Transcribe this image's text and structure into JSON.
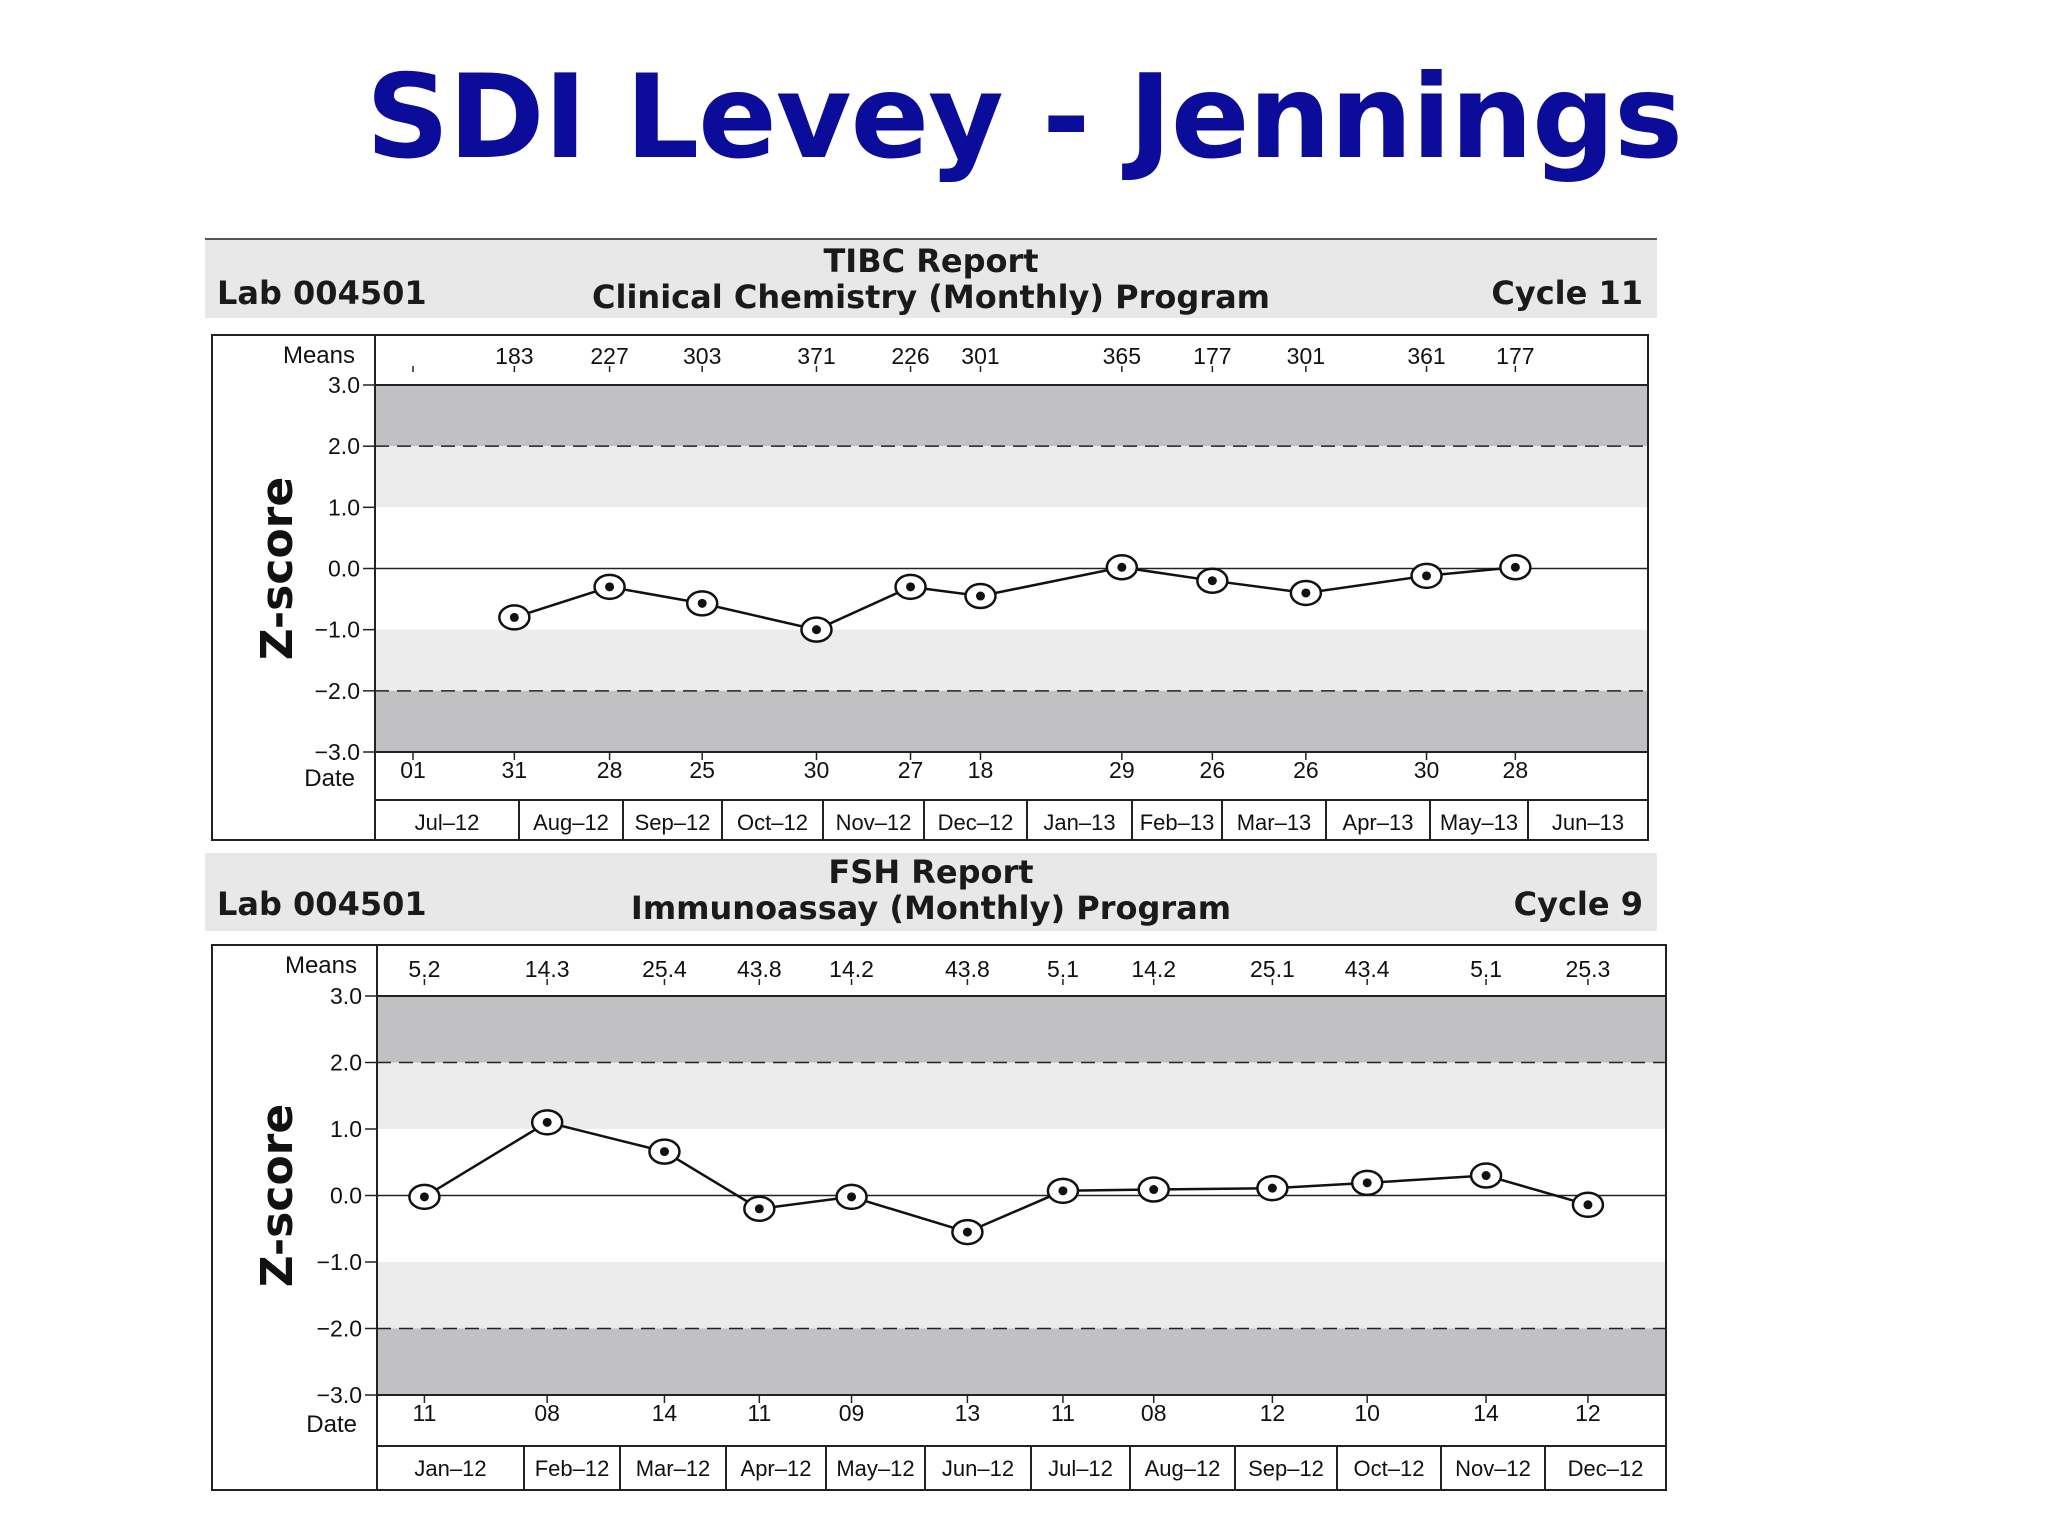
{
  "page": {
    "title": "SDI Levey - Jennings"
  },
  "charts": {
    "tibc": {
      "lab": "Lab 004501",
      "report": "TIBC Report",
      "program": "Clinical Chemistry (Monthly) Program",
      "cycle": "Cycle 11",
      "means_label": "Means",
      "date_label": "Date",
      "ylabel": "Z-score",
      "yticks": [
        "3.0",
        "2.0",
        "1.0",
        "0.0",
        "−1.0",
        "−2.0",
        "−3.0"
      ]
    },
    "fsh": {
      "lab": "Lab 004501",
      "report": "FSH Report",
      "program": "Immunoassay (Monthly) Program",
      "cycle": "Cycle 9",
      "means_label": "Means",
      "date_label": "Date",
      "ylabel": "Z-score",
      "yticks": [
        "3.0",
        "2.0",
        "1.0",
        "0.0",
        "−1.0",
        "−2.0",
        "−3.0"
      ]
    }
  },
  "chart_data": [
    {
      "type": "line",
      "title": "TIBC Report",
      "subtitle": "Clinical Chemistry (Monthly) Program",
      "ylabel": "Z-score",
      "ylim": [
        -3,
        3
      ],
      "grid": false,
      "limit_lines": [
        2,
        -2
      ],
      "months": [
        "Jul–12",
        "Aug–12",
        "Sep–12",
        "Oct–12",
        "Nov–12",
        "Dec–12",
        "Jan–13",
        "Feb–13",
        "Mar–13",
        "Apr–13",
        "May–13",
        "Jun–13"
      ],
      "start_day": "01",
      "means": [
        "183",
        "227",
        "303",
        "371",
        "226",
        "301",
        "365",
        "177",
        "301",
        "361",
        "177"
      ],
      "dates": [
        "31",
        "28",
        "25",
        "30",
        "27",
        "18",
        "29",
        "26",
        "26",
        "30",
        "28"
      ],
      "x": [
        "2012-07-31",
        "2012-08-28",
        "2012-09-25",
        "2012-10-30",
        "2012-11-27",
        "2012-12-18",
        "2013-01-29",
        "2013-02-26",
        "2013-03-26",
        "2013-04-30",
        "2013-05-28"
      ],
      "values": [
        -0.8,
        -0.3,
        -0.57,
        -1.0,
        -0.3,
        -0.45,
        0.02,
        -0.2,
        -0.4,
        -0.12,
        0.02
      ]
    },
    {
      "type": "line",
      "title": "FSH Report",
      "subtitle": "Immunoassay (Monthly) Program",
      "ylabel": "Z-score",
      "ylim": [
        -3,
        3
      ],
      "grid": false,
      "limit_lines": [
        2,
        -2
      ],
      "months": [
        "Jan–12",
        "Feb–12",
        "Mar–12",
        "Apr–12",
        "May–12",
        "Jun–12",
        "Jul–12",
        "Aug–12",
        "Sep–12",
        "Oct–12",
        "Nov–12",
        "Dec–12"
      ],
      "means": [
        "5.2",
        "14.3",
        "25.4",
        "43.8",
        "14.2",
        "43.8",
        "5.1",
        "14.2",
        "25.1",
        "43.4",
        "5.1",
        "25.3"
      ],
      "dates": [
        "11",
        "08",
        "14",
        "11",
        "09",
        "13",
        "11",
        "08",
        "12",
        "10",
        "14",
        "12"
      ],
      "x": [
        "2012-01-11",
        "2012-02-08",
        "2012-03-14",
        "2012-04-11",
        "2012-05-09",
        "2012-06-13",
        "2012-07-11",
        "2012-08-08",
        "2012-09-12",
        "2012-10-10",
        "2012-11-14",
        "2012-12-12"
      ],
      "values": [
        -0.02,
        1.1,
        0.66,
        -0.2,
        -0.02,
        -0.55,
        0.07,
        0.09,
        0.11,
        0.19,
        0.3,
        -0.14
      ]
    }
  ]
}
